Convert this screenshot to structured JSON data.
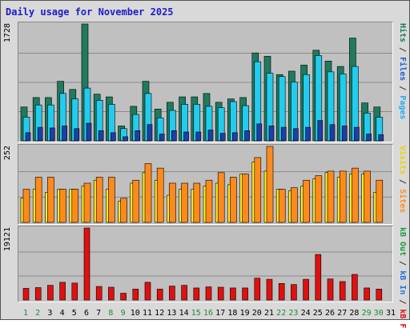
{
  "title": "Daily usage for November 2025",
  "colors": {
    "hits": "#1f7a5e",
    "files": "#22ccee",
    "pages": "#1c3fa8",
    "visits": "#ffee22",
    "sites": "#ff8a1c",
    "kb_in": "#2a6fdd",
    "kb_out": "#1e9b3a",
    "kbf": "#e01010",
    "weekend_day": "#1e8a3a",
    "weekday_day": "#000000"
  },
  "panels": {
    "top": {
      "ymax_label": "1728",
      "legend": [
        {
          "text": "Pages",
          "color": "#22aaee"
        },
        {
          "text": " / ",
          "color": "#333"
        },
        {
          "text": "Files",
          "color": "#1c5fd0"
        },
        {
          "text": " / ",
          "color": "#333"
        },
        {
          "text": "Hits",
          "color": "#1a7a5a"
        }
      ]
    },
    "middle": {
      "ymax_label": "252",
      "legend": [
        {
          "text": "Sites",
          "color": "#ff8a1c"
        },
        {
          "text": " / ",
          "color": "#333"
        },
        {
          "text": "Visits",
          "color": "#e8d400"
        }
      ]
    },
    "bottom": {
      "ymax_label": "19121",
      "legend": [
        {
          "text": "kB F",
          "color": "#e01010"
        },
        {
          "text": " / ",
          "color": "#333"
        },
        {
          "text": "kB In",
          "color": "#2a6fdd"
        },
        {
          "text": " / ",
          "color": "#333"
        },
        {
          "text": "kB Out",
          "color": "#1e9b3a"
        }
      ]
    }
  },
  "chart_data": {
    "type": "bar",
    "categories": [
      "1",
      "2",
      "3",
      "4",
      "5",
      "6",
      "7",
      "8",
      "9",
      "10",
      "11",
      "12",
      "13",
      "14",
      "15",
      "16",
      "17",
      "18",
      "19",
      "20",
      "21",
      "22",
      "23",
      "24",
      "25",
      "26",
      "27",
      "28",
      "29",
      "30",
      "31"
    ],
    "weekend_days": [
      "1",
      "2",
      "8",
      "9",
      "15",
      "16",
      "22",
      "23",
      "29",
      "30"
    ],
    "top_ylim": [
      0,
      1728
    ],
    "hits": [
      500,
      640,
      640,
      880,
      760,
      1728,
      690,
      650,
      220,
      510,
      880,
      470,
      570,
      650,
      650,
      700,
      570,
      620,
      640,
      1300,
      1250,
      980,
      1030,
      1120,
      1340,
      1180,
      1100,
      1520,
      560,
      500,
      0
    ],
    "files": [
      350,
      530,
      530,
      700,
      620,
      780,
      600,
      540,
      180,
      390,
      700,
      340,
      450,
      540,
      540,
      510,
      490,
      580,
      520,
      1170,
      1000,
      950,
      870,
      980,
      1260,
      1020,
      990,
      1100,
      410,
      350,
      0
    ],
    "pages": [
      120,
      200,
      190,
      220,
      180,
      260,
      150,
      120,
      60,
      150,
      240,
      100,
      150,
      130,
      130,
      160,
      110,
      120,
      150,
      250,
      220,
      200,
      180,
      200,
      300,
      240,
      220,
      200,
      100,
      90,
      0
    ],
    "middle_ylim": [
      0,
      252
    ],
    "sites": [
      110,
      150,
      150,
      110,
      110,
      130,
      150,
      150,
      80,
      140,
      195,
      180,
      130,
      130,
      130,
      140,
      165,
      150,
      160,
      215,
      252,
      110,
      115,
      140,
      155,
      170,
      170,
      180,
      170,
      140,
      0
    ],
    "visits": [
      80,
      110,
      100,
      110,
      110,
      120,
      140,
      110,
      70,
      130,
      165,
      140,
      90,
      110,
      110,
      120,
      130,
      125,
      160,
      200,
      170,
      110,
      105,
      120,
      145,
      165,
      150,
      160,
      160,
      100,
      0
    ],
    "bottom_ylim": [
      0,
      19121
    ],
    "kbf": [
      3100,
      3300,
      3900,
      4700,
      4500,
      19121,
      3600,
      3400,
      1800,
      2900,
      4700,
      2900,
      3700,
      3900,
      3200,
      3500,
      3400,
      3200,
      3200,
      5800,
      5500,
      4400,
      4100,
      5500,
      12100,
      5600,
      4900,
      6800,
      3200,
      2900,
      0
    ]
  }
}
